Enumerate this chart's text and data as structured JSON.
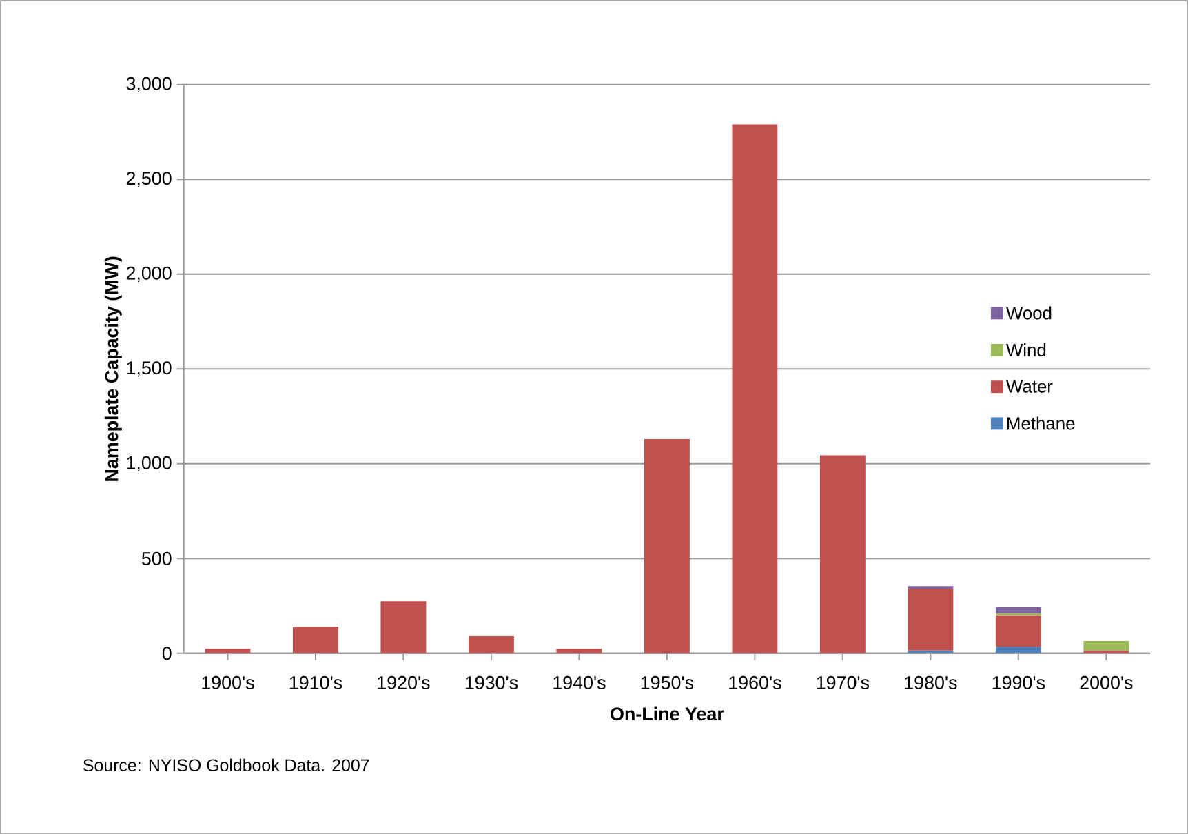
{
  "chart_data": {
    "type": "bar",
    "stacked": true,
    "categories": [
      "1900's",
      "1910's",
      "1920's",
      "1930's",
      "1940's",
      "1950's",
      "1960's",
      "1970's",
      "1980's",
      "1990's",
      "2000's"
    ],
    "series": [
      {
        "name": "Methane",
        "color": "#4f81bd",
        "values": [
          0,
          0,
          0,
          0,
          0,
          0,
          0,
          0,
          15,
          35,
          0
        ]
      },
      {
        "name": "Water",
        "color": "#c0504d",
        "values": [
          25,
          140,
          275,
          90,
          25,
          1130,
          2790,
          1045,
          325,
          165,
          15
        ]
      },
      {
        "name": "Wind",
        "color": "#9bbb59",
        "values": [
          0,
          0,
          0,
          0,
          0,
          0,
          0,
          0,
          0,
          10,
          50
        ]
      },
      {
        "name": "Wood",
        "color": "#8064a2",
        "values": [
          0,
          0,
          0,
          0,
          0,
          0,
          0,
          0,
          15,
          35,
          0
        ]
      }
    ],
    "ylim": [
      0,
      3000
    ],
    "yticks": [
      {
        "value": 0,
        "label": "0"
      },
      {
        "value": 500,
        "label": "500"
      },
      {
        "value": 1000,
        "label": "1,000"
      },
      {
        "value": 1500,
        "label": "1,500"
      },
      {
        "value": 2000,
        "label": "2,000"
      },
      {
        "value": 2500,
        "label": "2,500"
      },
      {
        "value": 3000,
        "label": "3,000"
      }
    ],
    "xlabel": "On-Line Year",
    "ylabel": "Nameplate Capacity  (MW)",
    "grid": "y",
    "legend": "right",
    "annotations": [
      "Source: NYISO Goldbook Data.  2007"
    ]
  }
}
